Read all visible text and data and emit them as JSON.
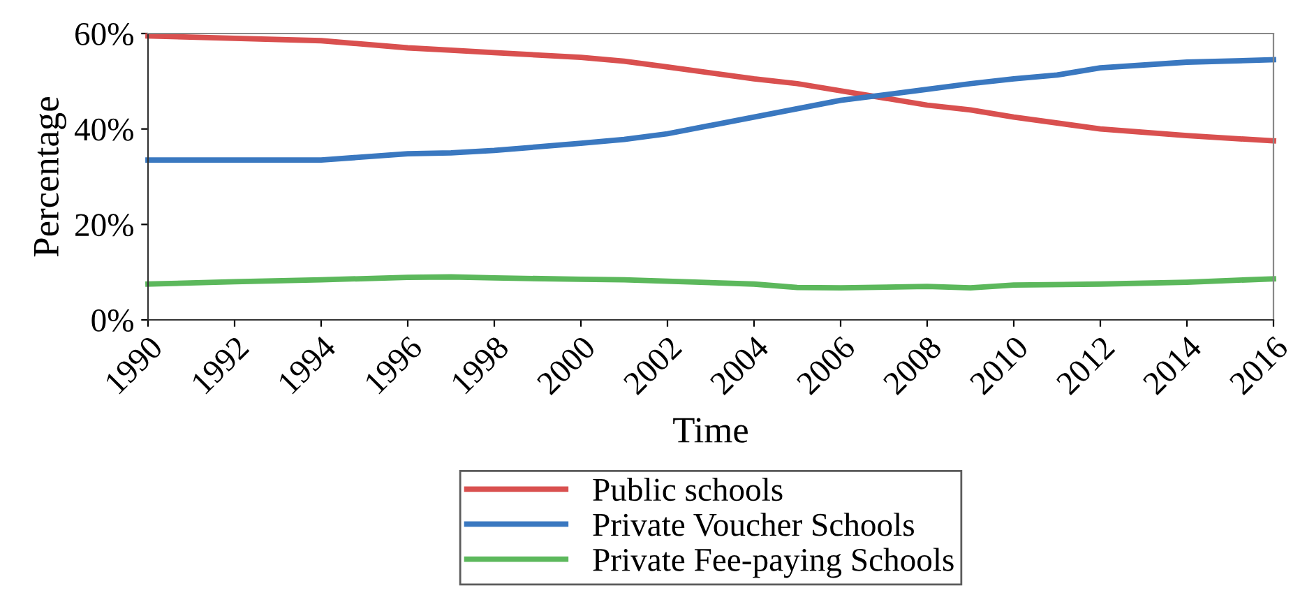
{
  "chart_data": {
    "type": "line",
    "xlabel": "Time",
    "ylabel": "Percentage",
    "xlim": [
      1990,
      2016
    ],
    "xticks": [
      1990,
      1992,
      1994,
      1996,
      1998,
      2000,
      2002,
      2004,
      2006,
      2008,
      2010,
      2012,
      2014,
      2016
    ],
    "ylim": [
      0,
      60
    ],
    "yticks": [
      {
        "value": 0,
        "label": "0%"
      },
      {
        "value": 20,
        "label": "20%"
      },
      {
        "value": 40,
        "label": "40%"
      },
      {
        "value": 60,
        "label": "60%"
      }
    ],
    "grid": false,
    "legend": "bottom",
    "marker": "none",
    "line_style": "solid",
    "series": [
      {
        "name": "Public schools",
        "color": "#d9504f",
        "x": [
          1990,
          1992,
          1994,
          1996,
          1997,
          1998,
          2000,
          2001,
          2002,
          2004,
          2005,
          2006,
          2008,
          2009,
          2010,
          2012,
          2014,
          2016
        ],
        "values": [
          59.5,
          59,
          58.5,
          57,
          56.5,
          56,
          55,
          54.2,
          53,
          50.5,
          49.5,
          48,
          45,
          44,
          42.5,
          40,
          38.6,
          37.5
        ]
      },
      {
        "name": "Private Voucher Schools",
        "color": "#3a78c0",
        "x": [
          1990,
          1994,
          1996,
          1997,
          1998,
          2000,
          2001,
          2002,
          2004,
          2006,
          2008,
          2009,
          2010,
          2011,
          2012,
          2014,
          2016
        ],
        "values": [
          33.5,
          33.5,
          34.8,
          35,
          35.5,
          37,
          37.8,
          39,
          42.5,
          46,
          48.3,
          49.5,
          50.5,
          51.3,
          52.8,
          54,
          54.5
        ]
      },
      {
        "name": "Private Fee-paying Schools",
        "color": "#5cb85c",
        "x": [
          1990,
          1992,
          1994,
          1996,
          1997,
          1998,
          2000,
          2001,
          2002,
          2004,
          2005,
          2006,
          2008,
          2009,
          2010,
          2012,
          2014,
          2016
        ],
        "values": [
          7.5,
          8,
          8.4,
          8.9,
          9,
          8.8,
          8.5,
          8.4,
          8.1,
          7.5,
          6.8,
          6.7,
          7,
          6.7,
          7.3,
          7.5,
          7.9,
          8.6
        ]
      }
    ]
  }
}
